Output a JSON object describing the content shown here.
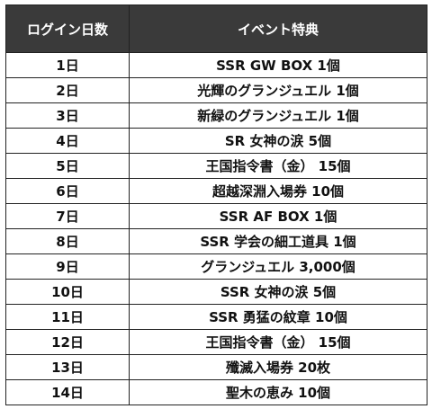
{
  "headers": {
    "days": "ログイン日数",
    "reward": "イベント特典"
  },
  "rows": [
    {
      "day": "1日",
      "reward": "SSR GW BOX 1個"
    },
    {
      "day": "2日",
      "reward": "光輝のグランジュエル 1個"
    },
    {
      "day": "3日",
      "reward": "新緑のグランジュエル 1個"
    },
    {
      "day": "4日",
      "reward": "SR 女神の涙 5個"
    },
    {
      "day": "5日",
      "reward": "王国指令書（金） 15個"
    },
    {
      "day": "6日",
      "reward": "超越深淵入場券 10個"
    },
    {
      "day": "7日",
      "reward": "SSR AF BOX 1個"
    },
    {
      "day": "8日",
      "reward": "SSR 学会の細工道具 1個"
    },
    {
      "day": "9日",
      "reward": "グランジュエル 3,000個"
    },
    {
      "day": "10日",
      "reward": "SSR 女神の涙 5個"
    },
    {
      "day": "11日",
      "reward": "SSR 勇猛の紋章 10個"
    },
    {
      "day": "12日",
      "reward": "王国指令書（金） 15個"
    },
    {
      "day": "13日",
      "reward": "殲滅入場券 20枚"
    },
    {
      "day": "14日",
      "reward": "聖木の恵み 10個"
    }
  ]
}
